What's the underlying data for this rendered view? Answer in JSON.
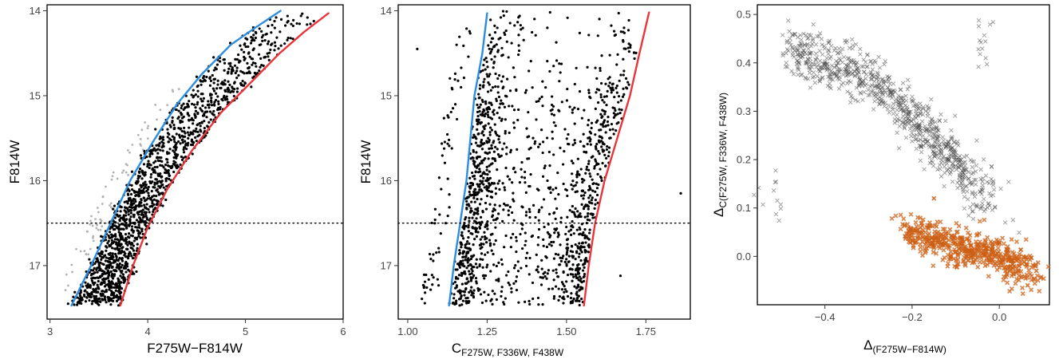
{
  "chart_data": [
    {
      "type": "scatter",
      "xlabel": "F275W−F814W",
      "ylabel": "F814W",
      "xlim": [
        2.97,
        6.0
      ],
      "ylim": [
        17.63,
        13.93
      ],
      "y_reversed": true,
      "xticks": [
        3,
        4,
        5,
        6
      ],
      "yticks": [
        14,
        15,
        16,
        17
      ],
      "hline": {
        "y": 16.5,
        "style": "dotted"
      },
      "colors": {
        "stars": "#000000",
        "rejected": "#b3b3b3",
        "blue_fiducial": "#2b8de0",
        "red_fiducial": "#e8343a"
      },
      "series": [
        {
          "x": [
            3.22,
            3.42,
            3.62,
            3.82,
            4.05,
            4.3,
            4.55,
            4.85,
            5.1,
            5.36
          ],
          "y": [
            17.47,
            17.0,
            16.5,
            16.0,
            15.55,
            15.1,
            14.75,
            14.4,
            14.2,
            14.0
          ]
        },
        {
          "x": [
            3.72,
            3.85,
            4.0,
            4.2,
            4.45,
            4.75,
            5.05,
            5.35,
            5.6,
            5.85
          ],
          "y": [
            17.47,
            17.0,
            16.55,
            16.1,
            15.65,
            15.2,
            14.85,
            14.5,
            14.25,
            14.03
          ]
        },
        {
          "x": [
            3.45,
            3.6,
            3.7,
            3.8,
            3.92,
            4.05,
            4.2,
            4.35,
            4.55,
            4.75,
            5.0,
            5.3,
            5.6,
            5.8
          ],
          "y": [
            17.45,
            17.3,
            17.1,
            16.9,
            16.6,
            16.3,
            16.0,
            15.7,
            15.35,
            15.0,
            14.7,
            14.4,
            14.15,
            14.02
          ]
        }
      ]
    },
    {
      "type": "scatter",
      "xlabel": "C",
      "xlabel_sub": "F275W, F336W, F438W",
      "ylabel": "F814W",
      "xlim": [
        0.97,
        1.89
      ],
      "ylim": [
        17.63,
        13.93
      ],
      "y_reversed": true,
      "xticks": [
        1.0,
        1.25,
        1.5,
        1.75
      ],
      "xtick_labels": [
        "1.00",
        "1.25",
        "1.50",
        "1.75"
      ],
      "yticks": [
        14,
        15,
        16,
        17
      ],
      "hline": {
        "y": 16.5,
        "style": "dotted"
      },
      "colors": {
        "stars": "#000000",
        "blue_fiducial": "#2b8de0",
        "red_fiducial": "#e8343a"
      },
      "series": [
        {
          "x": [
            1.13,
            1.145,
            1.165,
            1.185,
            1.21,
            1.235,
            1.25
          ],
          "y": [
            17.47,
            17.0,
            16.5,
            16.0,
            15.0,
            14.5,
            14.03
          ]
        },
        {
          "x": [
            1.555,
            1.57,
            1.59,
            1.62,
            1.66,
            1.7,
            1.73,
            1.76
          ],
          "y": [
            17.47,
            17.0,
            16.5,
            16.0,
            15.5,
            15.0,
            14.5,
            14.02
          ]
        },
        {
          "x": [
            1.2,
            1.5,
            1.35,
            1.6
          ],
          "y": [
            16.8,
            16.6,
            15.5,
            15.0
          ]
        }
      ]
    },
    {
      "type": "scatter",
      "xlabel": "Δ",
      "xlabel_sub": "(F275W−F814W)",
      "ylabel": "Δ",
      "ylabel_sub": "C(F275W, F336W, F438W)",
      "xlim": [
        -0.555,
        0.115
      ],
      "ylim": [
        -0.1,
        0.52
      ],
      "xticks": [
        -0.4,
        -0.2,
        0.0
      ],
      "xtick_labels": [
        "−0.4",
        "−0.2",
        "0.0"
      ],
      "yticks": [
        0.0,
        0.1,
        0.2,
        0.3,
        0.4,
        0.5
      ],
      "ytick_labels": [
        "0.0",
        "0.1",
        "0.2",
        "0.3",
        "0.4",
        "0.5"
      ],
      "colors": {
        "group1": "#555555",
        "group2": "#d2691e"
      },
      "series": [
        {
          "marker": "x",
          "x": [
            -0.5,
            -0.4,
            -0.3,
            -0.25,
            -0.15,
            -0.1,
            -0.05
          ],
          "y": [
            0.43,
            0.4,
            0.37,
            0.33,
            0.25,
            0.2,
            0.12
          ]
        },
        {
          "marker": "x",
          "x": [
            -0.15,
            -0.1,
            -0.05
          ],
          "y": [
            0.23,
            0.18,
            0.12
          ]
        },
        {
          "marker": "x-filled",
          "x": [
            -0.15,
            -0.1,
            -0.05,
            0.0,
            0.05
          ],
          "y": [
            0.06,
            0.04,
            0.02,
            0.0,
            -0.02
          ]
        }
      ]
    }
  ]
}
